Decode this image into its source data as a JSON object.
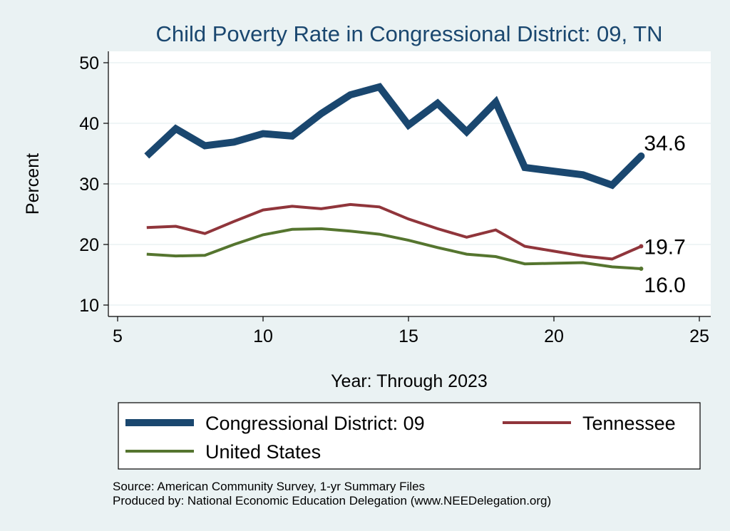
{
  "chart_data": {
    "type": "line",
    "title": "Child Poverty Rate in Congressional District:  09, TN",
    "xlabel": "Year: Through 2023",
    "ylabel": "Percent",
    "xlim": [
      5,
      25
    ],
    "ylim": [
      10,
      50
    ],
    "xticks": [
      "5",
      "10",
      "15",
      "20",
      "25"
    ],
    "yticks": [
      "10",
      "20",
      "30",
      "40",
      "50"
    ],
    "grid": true,
    "legend_position": "bottom",
    "x": [
      6,
      7,
      8,
      9,
      10,
      11,
      12,
      13,
      14,
      15,
      16,
      17,
      18,
      19,
      20,
      21,
      22,
      23
    ],
    "series": [
      {
        "name": "Congressional District:  09",
        "color": "#1a476f",
        "values": [
          34.6,
          39.1,
          36.3,
          36.9,
          38.3,
          37.9,
          41.6,
          44.7,
          46.0,
          39.7,
          43.3,
          38.6,
          43.5,
          32.7,
          32.1,
          31.5,
          29.8,
          34.6
        ],
        "end_label": "34.6"
      },
      {
        "name": "Tennessee",
        "color": "#90353b",
        "values": [
          22.8,
          23.0,
          21.8,
          23.8,
          25.7,
          26.3,
          25.9,
          26.6,
          26.2,
          24.2,
          22.6,
          21.2,
          22.4,
          19.7,
          18.9,
          18.1,
          17.6,
          19.7
        ],
        "end_label": "19.7"
      },
      {
        "name": "United States",
        "color": "#55752f",
        "values": [
          18.4,
          18.1,
          18.2,
          20.0,
          21.6,
          22.5,
          22.6,
          22.2,
          21.7,
          20.7,
          19.5,
          18.4,
          18.0,
          16.8,
          16.9,
          17.0,
          16.3,
          16.0
        ],
        "end_label": "16.0"
      }
    ]
  },
  "footer": {
    "source": "Source: American Community Survey, 1-yr Summary Files",
    "producer": "Produced by: National Economic Education Delegation (www.NEEDelegation.org)"
  }
}
